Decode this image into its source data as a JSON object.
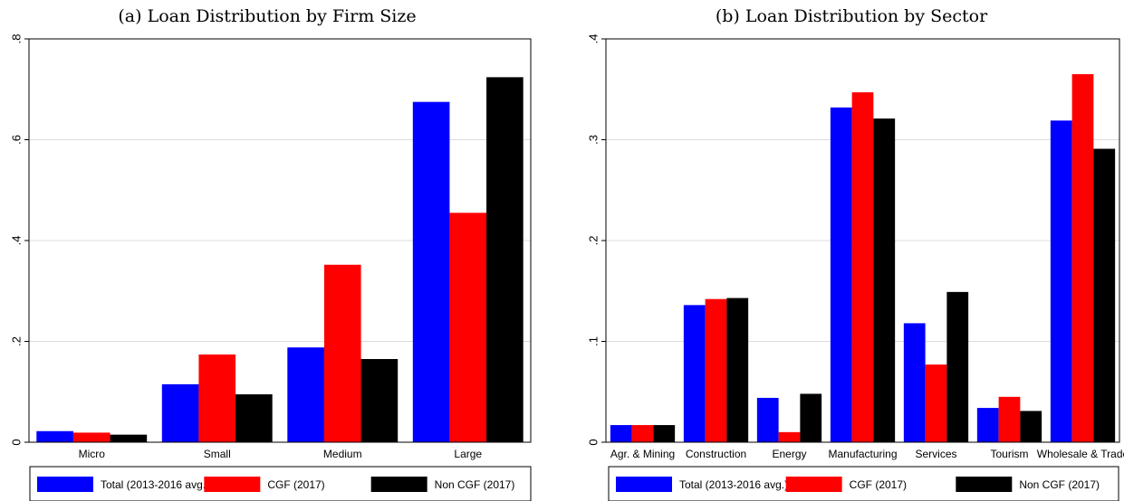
{
  "colors": {
    "total": "#0000ff",
    "cgf": "#ff0000",
    "noncgf": "#000000",
    "grid": "#dcdcdc"
  },
  "chart_data": [
    {
      "type": "bar",
      "title": "(a) Loan Distribution by Firm Size",
      "categories": [
        "Micro",
        "Small",
        "Medium",
        "Large"
      ],
      "ylim": [
        0,
        0.8
      ],
      "yticks": [
        0,
        0.2,
        0.4,
        0.6,
        0.8
      ],
      "ytick_labels": [
        "0",
        ".2",
        ".4",
        ".6",
        ".8"
      ],
      "grid": true,
      "legend_position": "bottom",
      "series": [
        {
          "name": "Total (2013-2016 avg.)",
          "color": "#0000ff",
          "values": [
            0.022,
            0.115,
            0.188,
            0.675
          ]
        },
        {
          "name": "CGF (2017)",
          "color": "#ff0000",
          "values": [
            0.019,
            0.174,
            0.352,
            0.455
          ]
        },
        {
          "name": "Non CGF (2017)",
          "color": "#000000",
          "values": [
            0.015,
            0.095,
            0.165,
            0.724
          ]
        }
      ]
    },
    {
      "type": "bar",
      "title": "(b) Loan Distribution by Sector",
      "categories": [
        "Agr. & Mining",
        "Construction",
        "Energy",
        "Manufacturing",
        "Services",
        "Tourism",
        "Wholesale & Trade"
      ],
      "ylim": [
        0,
        0.4
      ],
      "yticks": [
        0,
        0.1,
        0.2,
        0.3,
        0.4
      ],
      "ytick_labels": [
        "0",
        ".1",
        ".2",
        ".3",
        ".4"
      ],
      "grid": true,
      "legend_position": "bottom",
      "series": [
        {
          "name": "Total (2013-2016 avg.)",
          "color": "#0000ff",
          "values": [
            0.017,
            0.136,
            0.044,
            0.332,
            0.118,
            0.034,
            0.319
          ]
        },
        {
          "name": "CGF (2017)",
          "color": "#ff0000",
          "values": [
            0.017,
            0.142,
            0.01,
            0.347,
            0.077,
            0.045,
            0.365
          ]
        },
        {
          "name": "Non CGF (2017)",
          "color": "#000000",
          "values": [
            0.017,
            0.143,
            0.048,
            0.321,
            0.149,
            0.031,
            0.291
          ]
        }
      ]
    }
  ]
}
